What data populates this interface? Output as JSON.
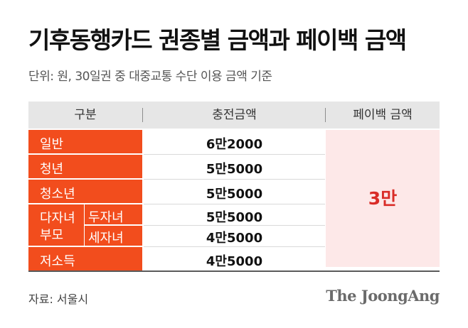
{
  "title": "기후동행카드 권종별 금액과 페이백 금액",
  "subtitle": "단위: 원, 30일권 중 대중교통 수단 이용 금액 기준",
  "source": "자료: 서울시",
  "logo": "The JoongAng",
  "colors": {
    "category_bg": "#f24d1d",
    "header_bg": "#e6e6e6",
    "payback_bg": "#fde8e8",
    "payback_text": "#d92c27"
  },
  "chart_data": {
    "type": "table",
    "columns": [
      "구분",
      "충전금액",
      "페이백 금액"
    ],
    "rows": [
      {
        "category": "일반",
        "subcategory": "",
        "amount": "6만2000",
        "amount_value": 62000
      },
      {
        "category": "청년",
        "subcategory": "",
        "amount": "5만5000",
        "amount_value": 55000
      },
      {
        "category": "청소년",
        "subcategory": "",
        "amount": "5만5000",
        "amount_value": 55000
      },
      {
        "category": "다자녀 부모",
        "subcategory": "두자녀",
        "amount": "5만5000",
        "amount_value": 55000
      },
      {
        "category": "다자녀 부모",
        "subcategory": "세자녀",
        "amount": "4만5000",
        "amount_value": 45000
      },
      {
        "category": "저소득",
        "subcategory": "",
        "amount": "4만5000",
        "amount_value": 45000
      }
    ],
    "group_labels": {
      "multi_child_line1": "다자녀",
      "multi_child_line2": "부모"
    },
    "payback": "3만",
    "payback_value": 30000
  }
}
